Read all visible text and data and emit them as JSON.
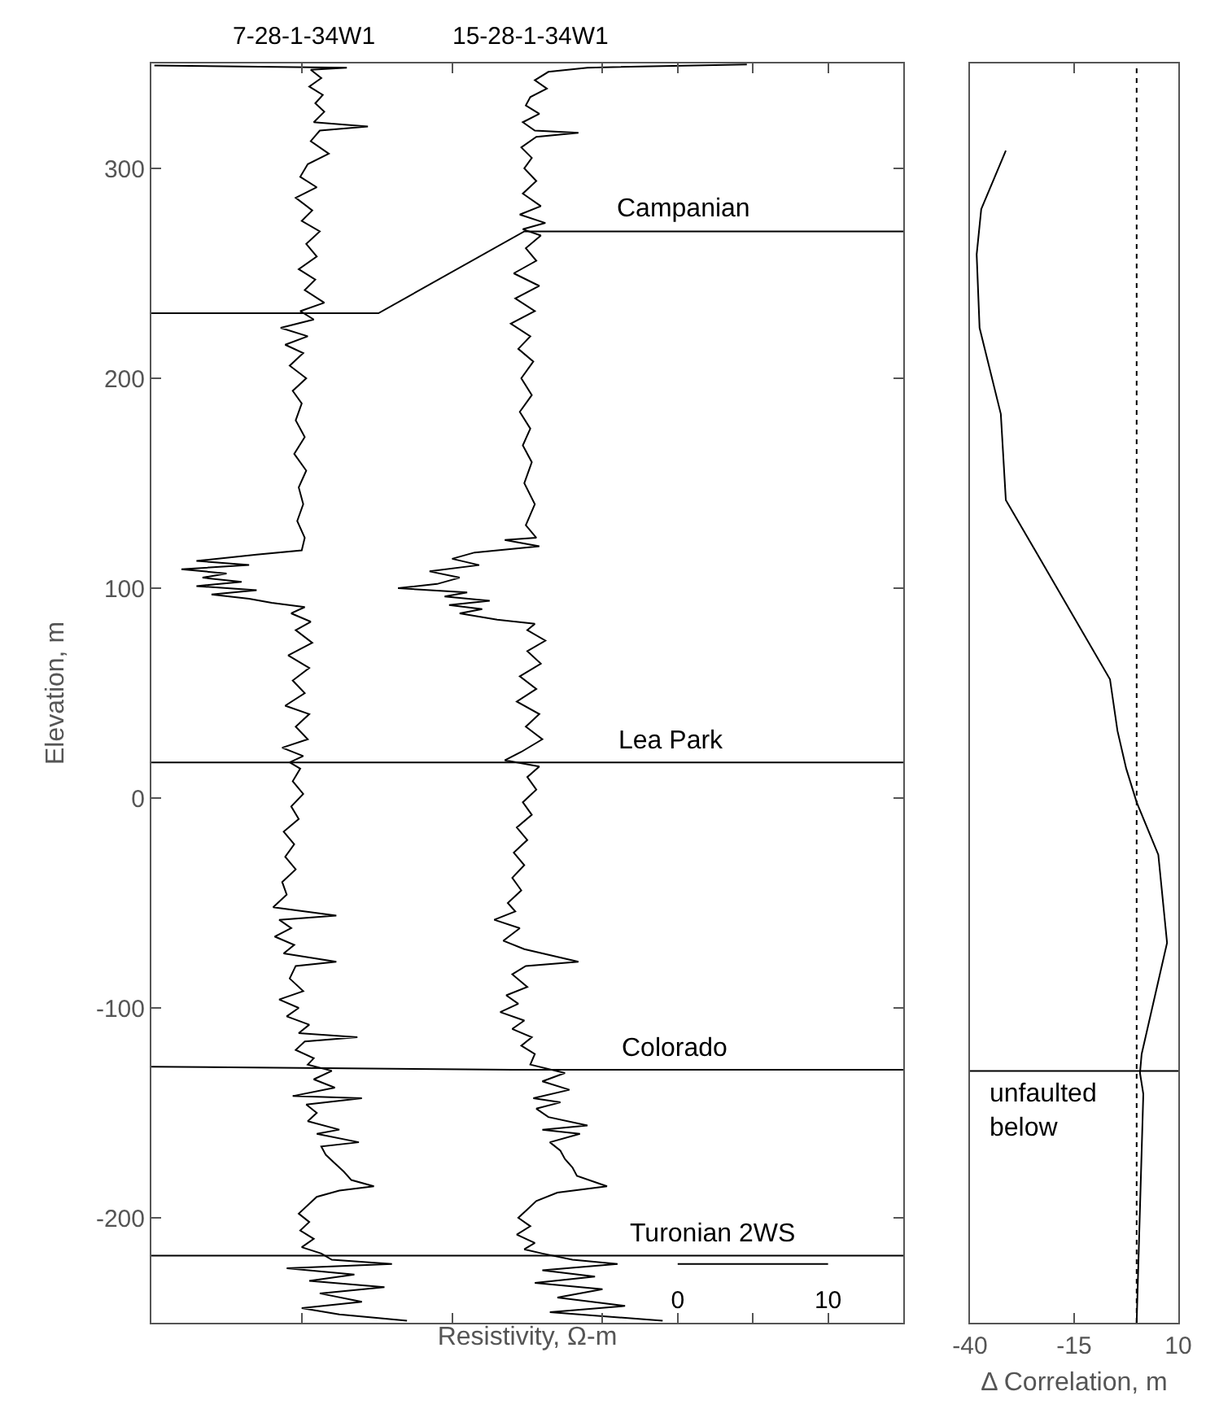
{
  "chart_data": [
    {
      "type": "line",
      "xlabel": "Resistivity, Ω-m",
      "ylabel": "Elevation, m",
      "xlim": [
        -35,
        15
      ],
      "ylim": [
        -250,
        350
      ],
      "xticks": [
        {
          "value": -25,
          "label": null
        },
        {
          "value": -15,
          "label": null
        },
        {
          "value": -5,
          "label": null
        },
        {
          "value": 5,
          "label": null
        },
        0,
        10
      ],
      "yticks": [
        -200,
        -100,
        0,
        100,
        200,
        300
      ],
      "series": [
        {
          "name": "7-28-1-34W1",
          "color": "#000000",
          "values": [
            349,
            348,
            347,
            343,
            339,
            335,
            331,
            327,
            322,
            320,
            318,
            313,
            307,
            302,
            296,
            291,
            286,
            280,
            275,
            270,
            264,
            258,
            252,
            247,
            242,
            236,
            232,
            228,
            224,
            220,
            216,
            212,
            206,
            200,
            194,
            188,
            180,
            172,
            164,
            156,
            148,
            140,
            132,
            124,
            118,
            116,
            113,
            111,
            109,
            107,
            105,
            103,
            101,
            99,
            97,
            95,
            93,
            91,
            88,
            84,
            80,
            74,
            68,
            62,
            56,
            50,
            44,
            40,
            34,
            28,
            24,
            20,
            17,
            14,
            8,
            2,
            -4,
            -10,
            -16,
            -22,
            -28,
            -34,
            -40,
            -46,
            -52,
            -56,
            -58,
            -62,
            -66,
            -70,
            -74,
            -78,
            -80,
            -86,
            -92,
            -96,
            -100,
            -104,
            -108,
            -112,
            -114,
            -116,
            -120,
            -124,
            -127,
            -130,
            -134,
            -138,
            -142,
            -143,
            -146,
            -150,
            -154,
            -158,
            -160,
            -164,
            -166,
            -170,
            -174,
            -178,
            -182,
            -185,
            -187,
            -190,
            -194,
            -198,
            -202,
            -206,
            -210,
            -214,
            -217,
            -220,
            -222,
            -224,
            -227,
            -230,
            -233,
            -236,
            -240,
            -243,
            -246,
            -249
          ],
          "x": [
            -34.8,
            -22.0,
            -24.4,
            -23.7,
            -24.5,
            -23.6,
            -24.1,
            -23.5,
            -24.2,
            -20.6,
            -23.8,
            -24.4,
            -23.2,
            -24.6,
            -25.1,
            -24.0,
            -25.4,
            -24.3,
            -25.0,
            -23.8,
            -24.7,
            -24.0,
            -25.2,
            -24.1,
            -24.8,
            -23.5,
            -25.1,
            -24.2,
            -26.4,
            -24.6,
            -26.1,
            -24.9,
            -25.8,
            -24.7,
            -25.6,
            -25.0,
            -25.4,
            -24.8,
            -25.5,
            -24.7,
            -25.2,
            -24.9,
            -25.3,
            -24.8,
            -25.0,
            -28.0,
            -32.0,
            -28.5,
            -33.0,
            -30.0,
            -31.6,
            -29.0,
            -32.0,
            -28.0,
            -31.0,
            -28.5,
            -27.0,
            -24.8,
            -25.7,
            -24.4,
            -25.4,
            -24.3,
            -25.9,
            -24.5,
            -25.6,
            -24.8,
            -26.1,
            -24.5,
            -25.4,
            -24.6,
            -26.3,
            -24.9,
            -25.8,
            -25.1,
            -25.6,
            -24.9,
            -25.7,
            -25.2,
            -26.2,
            -25.5,
            -26.1,
            -25.4,
            -26.3,
            -26.0,
            -26.9,
            -22.7,
            -26.5,
            -25.7,
            -26.8,
            -25.5,
            -26.2,
            -22.7,
            -25.4,
            -25.8,
            -24.9,
            -26.5,
            -25.2,
            -26.0,
            -24.5,
            -25.2,
            -21.3,
            -24.8,
            -25.4,
            -24.2,
            -24.6,
            -23.0,
            -24.2,
            -22.8,
            -25.6,
            -21.0,
            -24.7,
            -24.0,
            -24.6,
            -22.5,
            -24.0,
            -21.2,
            -23.7,
            -23.4,
            -22.8,
            -22.2,
            -21.7,
            -20.2,
            -22.5,
            -24.0,
            -24.6,
            -25.2,
            -24.5,
            -25.1,
            -24.2,
            -25.0,
            -23.7,
            -23.0,
            -19.0,
            -26.0,
            -21.5,
            -24.5,
            -19.5,
            -23.8,
            -21.0,
            -25.0,
            -22.5,
            -18.0
          ]
        },
        {
          "name": "15-28-1-34W1",
          "color": "#000000",
          "values": [
            349.5,
            348,
            346,
            342,
            338,
            334,
            330,
            326,
            322,
            318,
            317,
            315,
            310,
            305,
            300,
            294,
            288,
            282,
            278,
            274,
            271,
            268,
            262,
            256,
            250,
            244,
            238,
            232,
            226,
            220,
            214,
            208,
            200,
            192,
            184,
            176,
            168,
            160,
            150,
            140,
            130,
            124,
            123,
            120,
            117,
            114,
            111,
            108,
            105,
            102,
            100,
            98,
            96,
            94,
            92,
            90,
            88,
            85,
            83,
            80,
            75,
            70,
            64,
            58,
            52,
            46,
            40,
            34,
            28,
            22,
            18,
            15,
            10,
            4,
            -2,
            -8,
            -14,
            -20,
            -26,
            -32,
            -38,
            -44,
            -50,
            -54,
            -58,
            -62,
            -68,
            -72,
            -78,
            -80,
            -84,
            -90,
            -94,
            -98,
            -102,
            -106,
            -110,
            -114,
            -118,
            -122,
            -127,
            -131,
            -135,
            -139,
            -143,
            -145,
            -148,
            -152,
            -156,
            -158,
            -160,
            -164,
            -168,
            -172,
            -176,
            -180,
            -185,
            -188,
            -192,
            -196,
            -200,
            -204,
            -208,
            -212,
            -215,
            -217,
            -220,
            -222,
            -225,
            -228,
            -231,
            -234,
            -238,
            -242,
            -245,
            -249
          ],
          "x": [
            4.6,
            -6.0,
            -8.6,
            -9.5,
            -8.7,
            -9.8,
            -10.1,
            -9.2,
            -10.3,
            -9.5,
            -6.6,
            -9.4,
            -10.4,
            -9.7,
            -10.2,
            -9.4,
            -10.3,
            -9.1,
            -10.5,
            -8.8,
            -10.3,
            -9.1,
            -10.1,
            -9.4,
            -10.9,
            -9.2,
            -10.8,
            -9.5,
            -11.1,
            -9.8,
            -10.6,
            -9.6,
            -10.4,
            -9.7,
            -10.5,
            -9.8,
            -10.3,
            -9.7,
            -10.2,
            -9.5,
            -10.1,
            -9.4,
            -11.5,
            -9.2,
            -13.5,
            -15.0,
            -13.2,
            -16.5,
            -14.5,
            -16.0,
            -18.6,
            -14.0,
            -15.5,
            -12.5,
            -15.2,
            -13.0,
            -14.5,
            -12.0,
            -9.5,
            -10.0,
            -8.8,
            -10.0,
            -9.1,
            -10.5,
            -9.4,
            -10.7,
            -9.2,
            -10.1,
            -9.0,
            -10.4,
            -11.5,
            -9.2,
            -10.0,
            -9.4,
            -10.3,
            -9.7,
            -10.7,
            -10.0,
            -10.9,
            -10.2,
            -11.0,
            -10.4,
            -11.3,
            -10.8,
            -12.2,
            -10.5,
            -11.6,
            -10.2,
            -6.6,
            -10.1,
            -11.0,
            -10.0,
            -11.4,
            -10.6,
            -11.8,
            -10.2,
            -11.0,
            -9.7,
            -10.4,
            -9.5,
            -9.8,
            -7.5,
            -9.0,
            -7.2,
            -9.6,
            -7.8,
            -9.4,
            -8.6,
            -6.0,
            -9.0,
            -6.5,
            -8.5,
            -7.8,
            -7.5,
            -7.0,
            -6.7,
            -4.7,
            -8.0,
            -9.4,
            -10.0,
            -10.6,
            -9.8,
            -10.7,
            -9.5,
            -10.2,
            -9.0,
            -7.0,
            -4.0,
            -9.0,
            -5.5,
            -9.5,
            -5.0,
            -8.0,
            -3.5,
            -8.5,
            -1.0
          ]
        },
        {
          "color": "#000000",
          "x": [
            -35,
            -19.9,
            -10.2,
            15
          ],
          "values": [
            231,
            231,
            270,
            270
          ]
        },
        {
          "color": "#000000",
          "x": [
            -35,
            15
          ],
          "values": [
            17,
            17
          ]
        },
        {
          "color": "#000000",
          "x": [
            -35,
            -11,
            15
          ],
          "values": [
            -128,
            -129.5,
            -129.5
          ]
        },
        {
          "color": "#000000",
          "x": [
            -35,
            15
          ],
          "values": [
            -218,
            -218
          ]
        },
        {
          "color": "#000000",
          "x": [
            0,
            10
          ],
          "values": [
            -222,
            -222
          ]
        }
      ],
      "annotations": [
        {
          "text": "Campanian",
          "x": 0.4,
          "y": 270
        },
        {
          "text": "Lea Park",
          "x": -0.4,
          "y": 17
        },
        {
          "text": "Colorado",
          "x": -0.2,
          "y": -129.5
        },
        {
          "text": "Turonian 2WS",
          "x": 2.3,
          "y": -218
        }
      ]
    },
    {
      "type": "line",
      "xlabel": "Δ Correlation, m",
      "xlim": [
        -40,
        10
      ],
      "ylim": [
        -250,
        350
      ],
      "xticks": [
        -40,
        -15,
        10
      ],
      "tick_labels": "x",
      "series": [
        {
          "color": "#000000",
          "x": [
            -31.4,
            -37.3,
            -38.4,
            -37.7,
            -32.6,
            -31.4,
            -6.4,
            -4.6,
            -2.5,
            0,
            5.2,
            7.3,
            1.2,
            0.8,
            1.6,
            0
          ],
          "values": [
            308.5,
            280.6,
            259,
            224,
            183,
            142,
            56.6,
            32,
            14,
            -2,
            -27,
            -69,
            -122,
            -131,
            -141,
            -250
          ]
        }
      ],
      "ref_lines": [
        {
          "axis": "x",
          "value": 0,
          "line_style": "dotted",
          "color": "#000000"
        },
        {
          "axis": "y",
          "value": -130,
          "label": "unfaulted\nbelow",
          "color": "#000000"
        }
      ]
    }
  ]
}
